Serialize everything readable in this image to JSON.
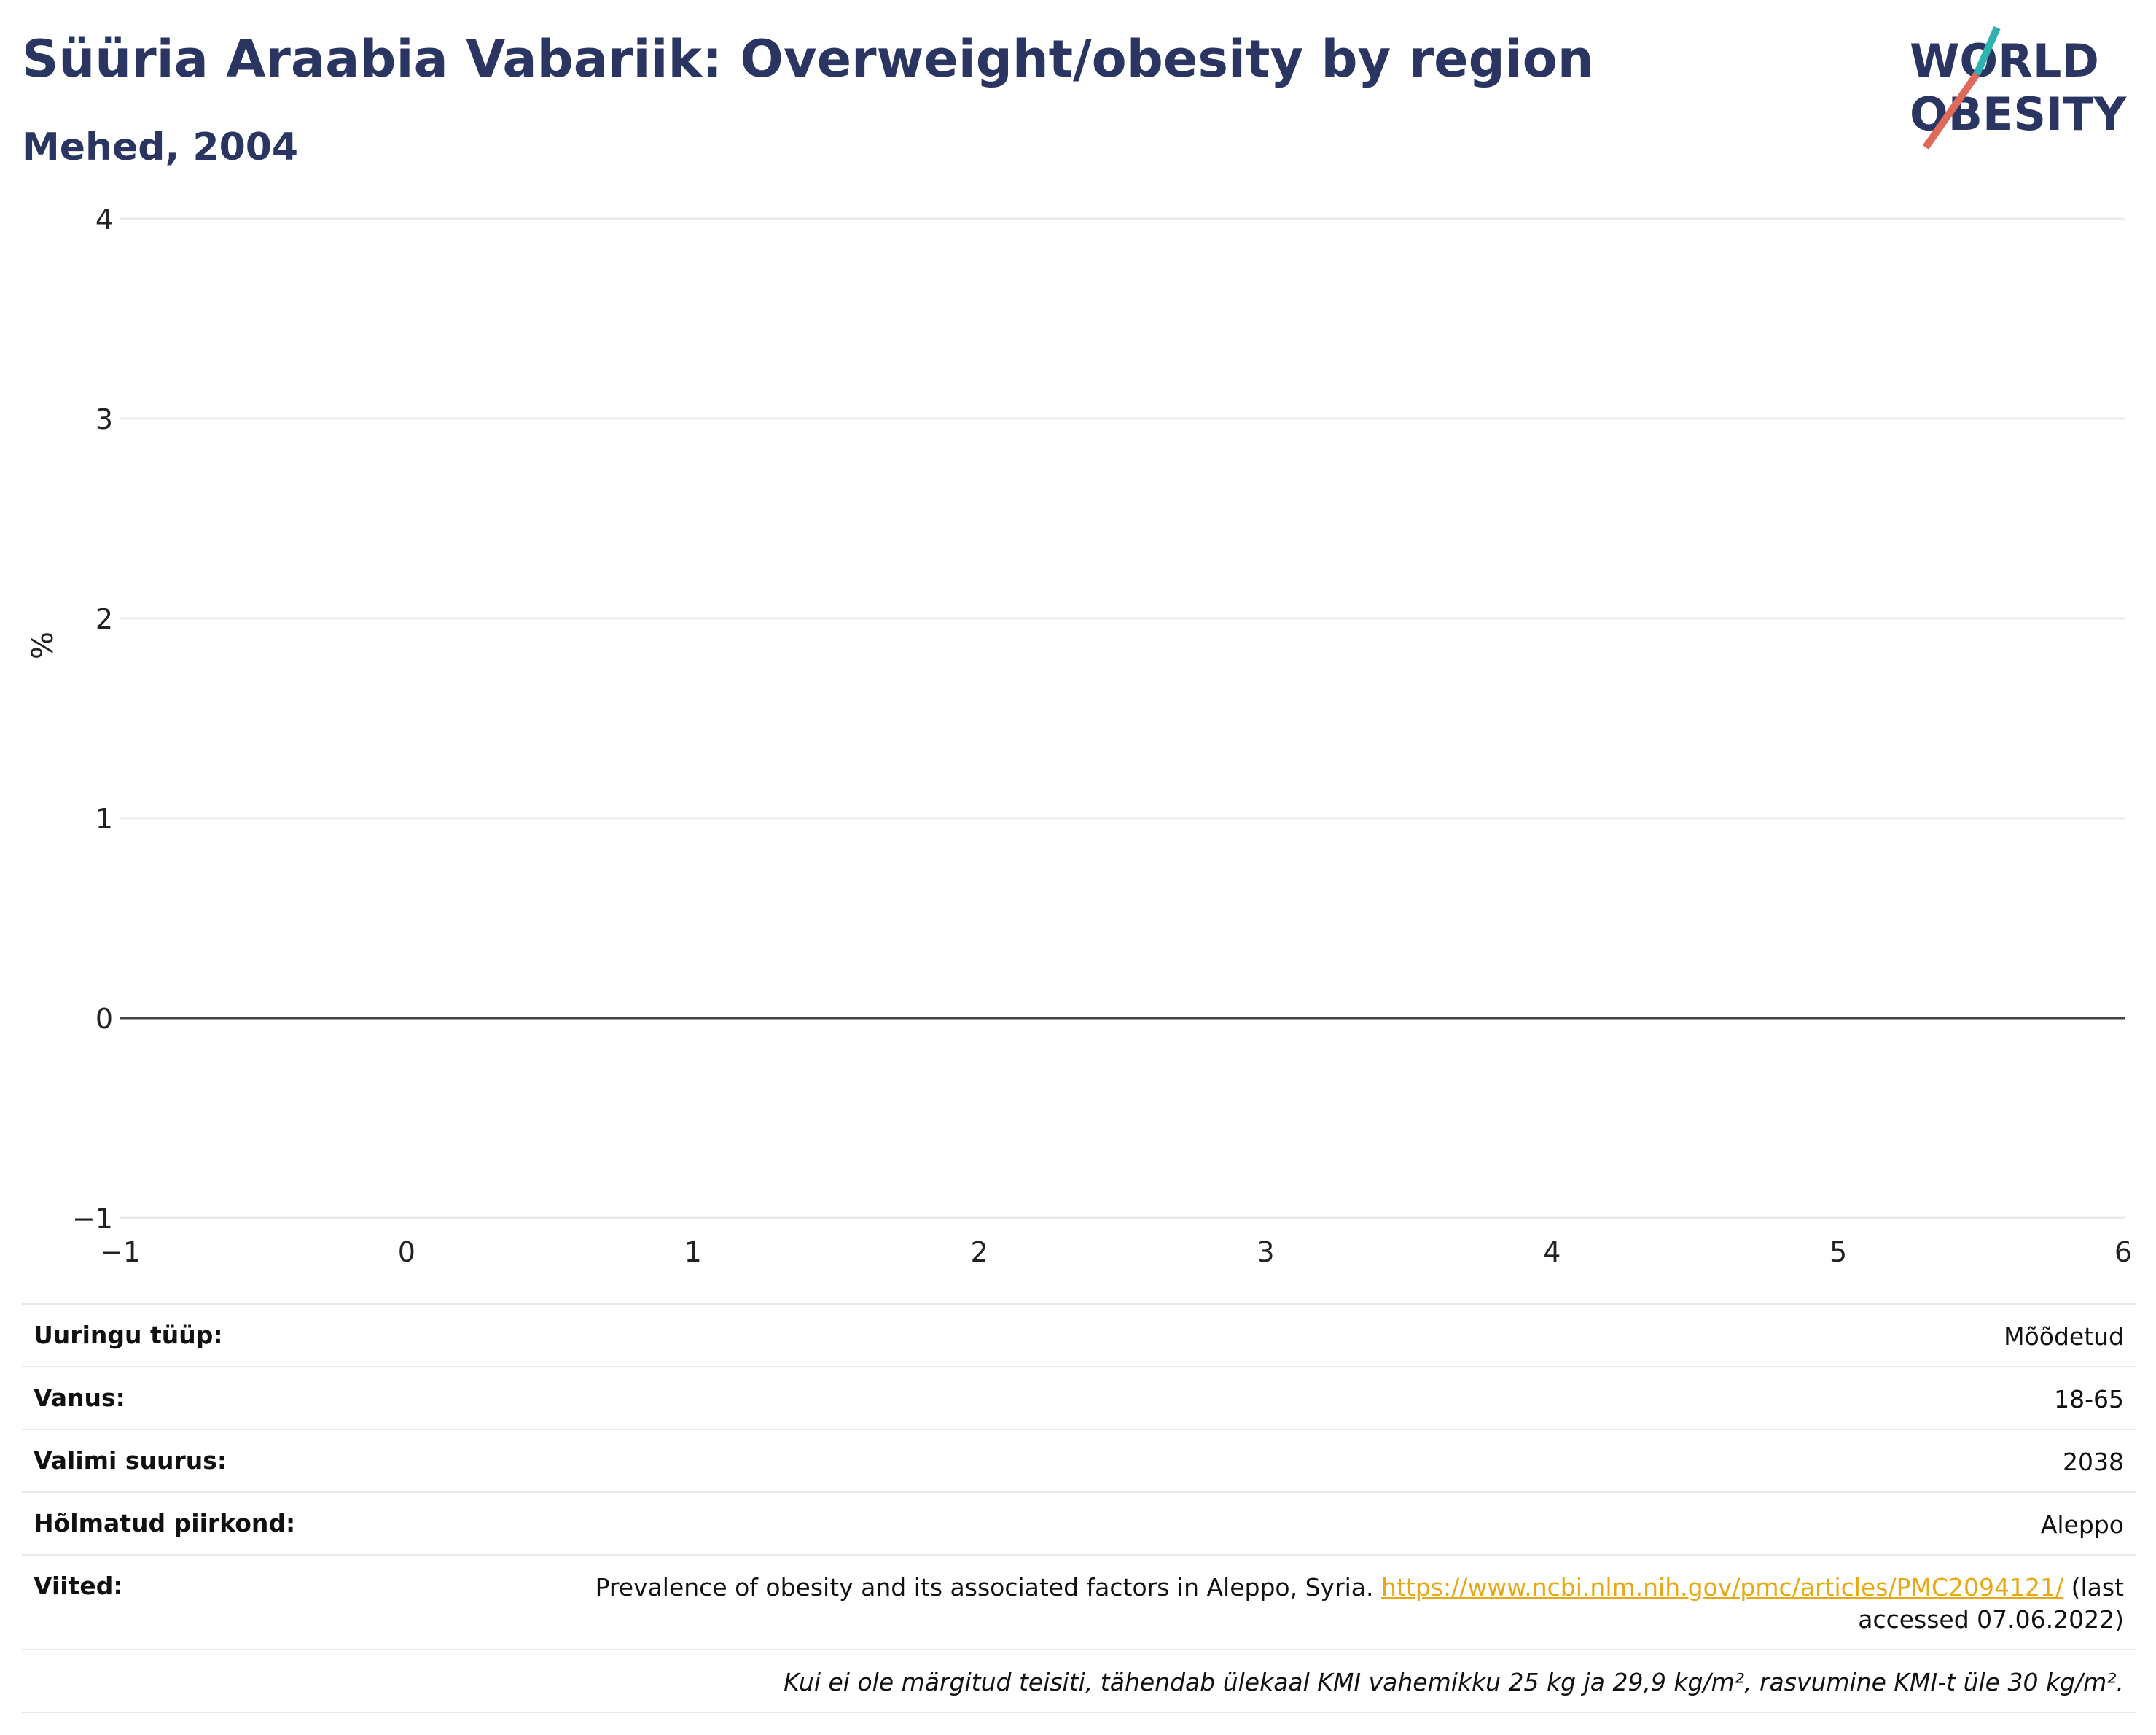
{
  "title": "Süüria Araabia Vabariik: Overweight/obesity by region",
  "subtitle": "Mehed, 2004",
  "logo": {
    "line1": "WORLD",
    "line2": "OBESITY"
  },
  "colors": {
    "title": "#2a3561",
    "link": "#e6a813",
    "logo_teal": "#2fb3b0",
    "logo_coral": "#e06a5a"
  },
  "chart_data": {
    "type": "bar",
    "title": "Süüria Araabia Vabariik: Overweight/obesity by region",
    "subtitle": "Mehed, 2004",
    "ylabel": "%",
    "xlabel": "",
    "xlim": [
      -1,
      6
    ],
    "ylim": [
      -1,
      4
    ],
    "xticks": [
      "−1",
      "0",
      "1",
      "2",
      "3",
      "4",
      "5",
      "6"
    ],
    "yticks": [
      "−1",
      "0",
      "1",
      "2",
      "3",
      "4"
    ],
    "categories": [],
    "series": [],
    "grid": true
  },
  "info": [
    {
      "key": "Uuringu tüüp:",
      "value": "Mõõdetud"
    },
    {
      "key": "Vanus:",
      "value": "18-65"
    },
    {
      "key": "Valimi suurus:",
      "value": "2038"
    },
    {
      "key": "Hõlmatud piirkond:",
      "value": "Aleppo"
    }
  ],
  "reference": {
    "key": "Viited:",
    "text": "Prevalence of obesity and its associated factors in Aleppo, Syria.",
    "url": "https://www.ncbi.nlm.nih.gov/pmc/articles/PMC2094121/",
    "suffix_line1": "(last",
    "suffix_line2": "accessed 07.06.2022)"
  },
  "note": "Kui ei ole märgitud teisiti, tähendab ülekaal KMI vahemikku 25 kg ja 29,9 kg/m², rasvumine KMI-t üle 30 kg/m²."
}
